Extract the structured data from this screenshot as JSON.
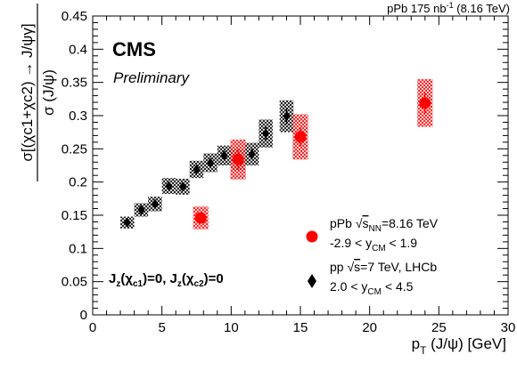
{
  "chart_data": {
    "type": "scatter",
    "experiment": "CMS",
    "status": "Preliminary",
    "lumi": {
      "pre": "pPb 175 nb",
      "exp": "-1",
      "post": " (8.16 TeV)"
    },
    "xlabel": {
      "main": "p",
      "sub": "T",
      "rest": " (J/ψ) [GeV]"
    },
    "ylabel": {
      "num": "σ[(χc1+χc2) → J/ψγ]",
      "den": "σ (J/ψ)"
    },
    "xlim": [
      0,
      30
    ],
    "ylim": [
      0,
      0.45
    ],
    "xticks": [
      "0",
      "5",
      "10",
      "15",
      "20",
      "25",
      "30"
    ],
    "yticks": [
      "0",
      "0.05",
      "0.1",
      "0.15",
      "0.2",
      "0.25",
      "0.3",
      "0.35",
      "0.4",
      "0.45"
    ],
    "annotation": {
      "jz1": "J",
      "jz1sub": "z",
      "jz2": "(χ",
      "jz2sub": "c1",
      "jz3": ")=0, J",
      "jz3sub": "z",
      "jz4": "(χ",
      "jz4sub": "c2",
      "jz5": ")=0"
    },
    "legend": [
      {
        "marker": "circle",
        "color": "#ff0000",
        "line1": {
          "a": "pPb ",
          "root": "s",
          "sub": "NN",
          "b": "=8.16 TeV"
        },
        "line2": {
          "a": "-2.9 < y",
          "sub": "CM",
          "b": " < 1.9"
        }
      },
      {
        "marker": "diamond",
        "color": "#000000",
        "line1": {
          "a": "pp  ",
          "root": "s",
          "sub": "",
          "b": "=7 TeV, LHCb"
        },
        "line2": {
          "a": "2.0 < y",
          "sub": "CM",
          "b": " < 4.5"
        }
      }
    ],
    "series": [
      {
        "name": "pPb",
        "color": "#ff0000",
        "marker": "circle",
        "points": [
          {
            "x": 7.8,
            "y": 0.146,
            "stat": 0.006,
            "sys": 0.017,
            "xw": 0.55
          },
          {
            "x": 10.5,
            "y": 0.234,
            "stat": 0.016,
            "sys": 0.03,
            "xw": 0.55
          },
          {
            "x": 15.0,
            "y": 0.268,
            "stat": 0.014,
            "sys": 0.034,
            "xw": 0.55
          },
          {
            "x": 24.0,
            "y": 0.319,
            "stat": 0.016,
            "sys": 0.036,
            "xw": 0.55
          }
        ]
      },
      {
        "name": "pp LHCb",
        "color": "#000000",
        "marker": "diamond",
        "points": [
          {
            "x": 2.5,
            "y": 0.139,
            "stat": 0.004,
            "sys": 0.009,
            "xw": 0.5
          },
          {
            "x": 3.5,
            "y": 0.158,
            "stat": 0.004,
            "sys": 0.01,
            "xw": 0.5
          },
          {
            "x": 4.5,
            "y": 0.167,
            "stat": 0.004,
            "sys": 0.011,
            "xw": 0.5
          },
          {
            "x": 5.5,
            "y": 0.194,
            "stat": 0.005,
            "sys": 0.012,
            "xw": 0.5
          },
          {
            "x": 6.5,
            "y": 0.193,
            "stat": 0.005,
            "sys": 0.012,
            "xw": 0.5
          },
          {
            "x": 7.5,
            "y": 0.219,
            "stat": 0.006,
            "sys": 0.013,
            "xw": 0.5
          },
          {
            "x": 8.5,
            "y": 0.229,
            "stat": 0.006,
            "sys": 0.014,
            "xw": 0.5
          },
          {
            "x": 9.5,
            "y": 0.24,
            "stat": 0.007,
            "sys": 0.015,
            "xw": 0.5
          },
          {
            "x": 10.5,
            "y": 0.234,
            "stat": 0.007,
            "sys": 0.016,
            "xw": 0.5
          },
          {
            "x": 11.5,
            "y": 0.242,
            "stat": 0.008,
            "sys": 0.017,
            "xw": 0.5
          },
          {
            "x": 12.5,
            "y": 0.273,
            "stat": 0.01,
            "sys": 0.021,
            "xw": 0.5
          },
          {
            "x": 14.0,
            "y": 0.299,
            "stat": 0.012,
            "sys": 0.024,
            "xw": 0.5
          }
        ]
      }
    ]
  }
}
